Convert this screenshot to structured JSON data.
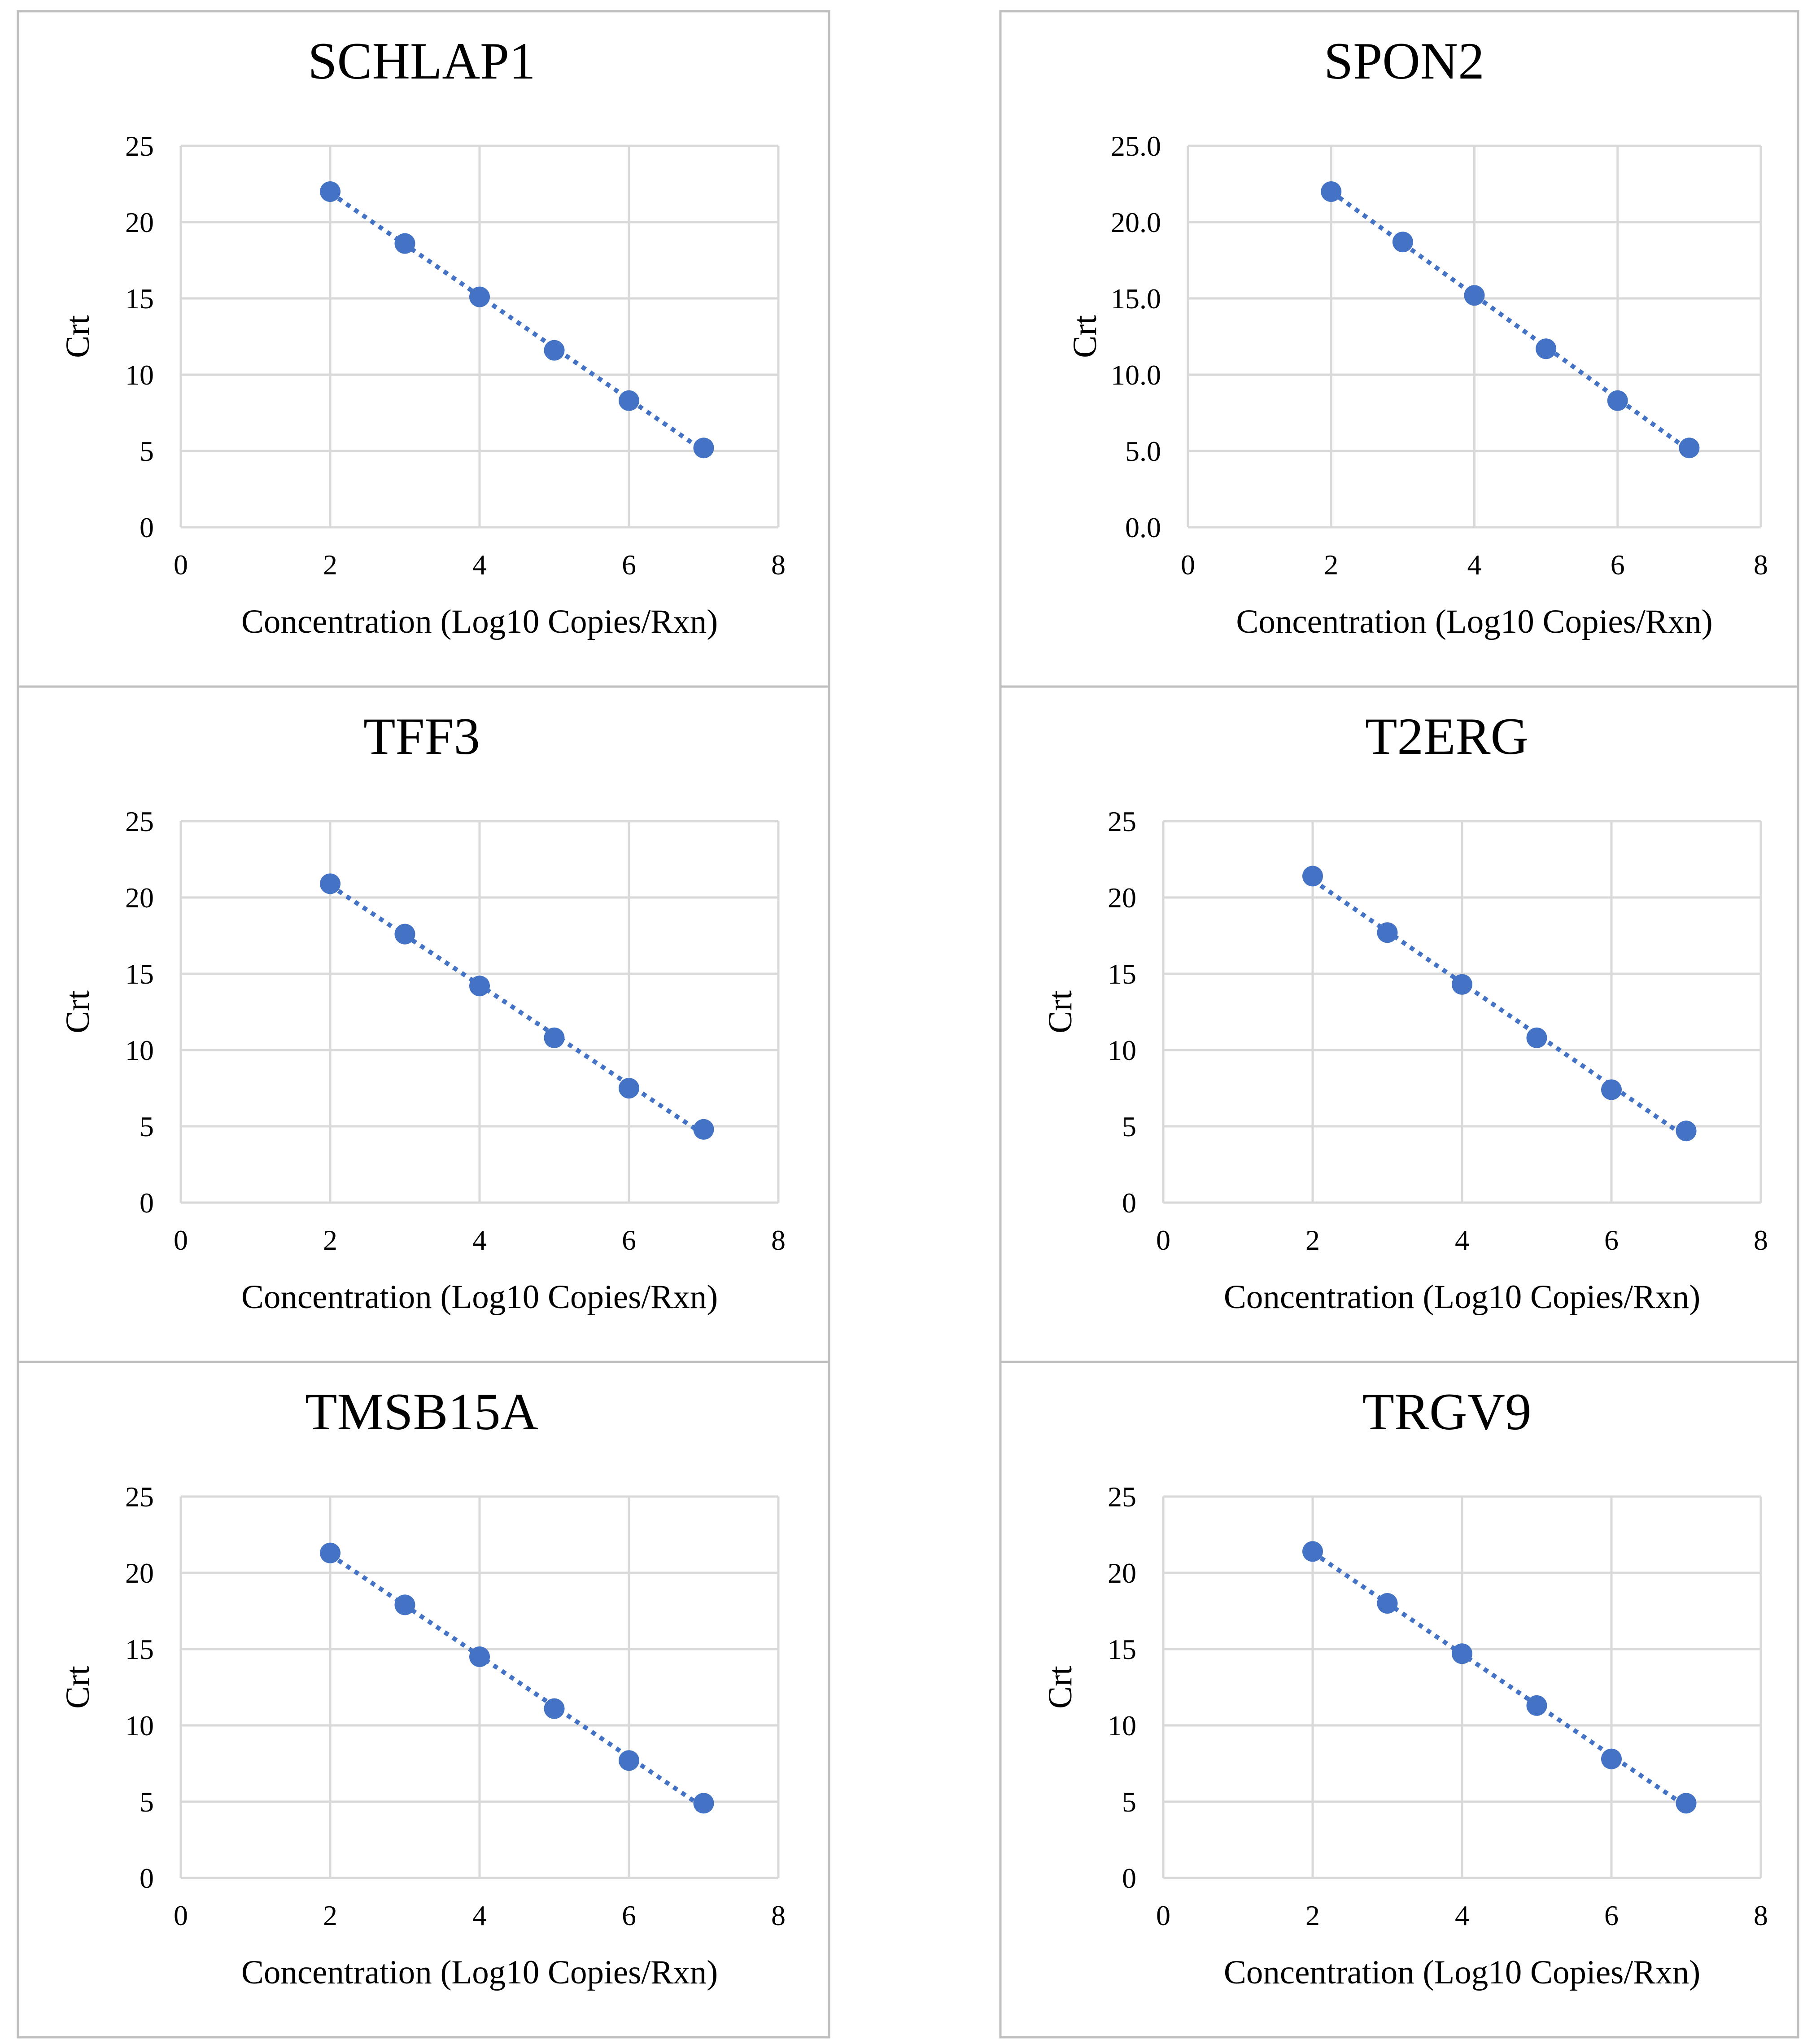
{
  "figure": {
    "colors": {
      "marker": "#4472C4",
      "trendline": "#4472C4",
      "gridline": "#D9D9D9",
      "panel_border": "#BFBFBF",
      "text": "#000000"
    }
  },
  "chart_data": [
    {
      "type": "scatter",
      "title": "SCHLAP1",
      "xlabel": "Concentration (Log10 Copies/Rxn)",
      "ylabel": "Crt",
      "xlim": [
        0,
        8
      ],
      "ylim": [
        0,
        25
      ],
      "x_ticks": [
        "0",
        "2",
        "4",
        "6",
        "8"
      ],
      "y_ticks": [
        "0",
        "5",
        "10",
        "15",
        "20",
        "25"
      ],
      "grid": true,
      "trendline": "linear, dotted",
      "series": [
        {
          "name": "SCHLAP1",
          "x": [
            2,
            3,
            4,
            5,
            6,
            7
          ],
          "y": [
            22.0,
            18.6,
            15.1,
            11.6,
            8.3,
            5.2
          ]
        }
      ]
    },
    {
      "type": "scatter",
      "title": "SPON2",
      "xlabel": "Concentration (Log10 Copies/Rxn)",
      "ylabel": "Crt",
      "xlim": [
        0,
        8
      ],
      "ylim": [
        0,
        25
      ],
      "x_ticks": [
        "0",
        "2",
        "4",
        "6",
        "8"
      ],
      "y_ticks": [
        "0.0",
        "5.0",
        "10.0",
        "15.0",
        "20.0",
        "25.0"
      ],
      "grid": true,
      "trendline": "linear, dotted",
      "series": [
        {
          "name": "SPON2",
          "x": [
            2,
            3,
            4,
            5,
            6,
            7
          ],
          "y": [
            22.0,
            18.7,
            15.2,
            11.7,
            8.3,
            5.2
          ]
        }
      ]
    },
    {
      "type": "scatter",
      "title": "TFF3",
      "xlabel": "Concentration (Log10 Copies/Rxn)",
      "ylabel": "Crt",
      "xlim": [
        0,
        8
      ],
      "ylim": [
        0,
        25
      ],
      "x_ticks": [
        "0",
        "2",
        "4",
        "6",
        "8"
      ],
      "y_ticks": [
        "0",
        "5",
        "10",
        "15",
        "20",
        "25"
      ],
      "grid": true,
      "trendline": "linear, dotted",
      "series": [
        {
          "name": "TFF3",
          "x": [
            2,
            3,
            4,
            5,
            6,
            7
          ],
          "y": [
            20.9,
            17.6,
            14.2,
            10.8,
            7.5,
            4.8
          ]
        }
      ]
    },
    {
      "type": "scatter",
      "title": "T2ERG",
      "xlabel": "Concentration (Log10 Copies/Rxn)",
      "ylabel": "Crt",
      "xlim": [
        0,
        8
      ],
      "ylim": [
        0,
        25
      ],
      "x_ticks": [
        "0",
        "2",
        "4",
        "6",
        "8"
      ],
      "y_ticks": [
        "0",
        "5",
        "10",
        "15",
        "20",
        "25"
      ],
      "grid": true,
      "trendline": "linear, dotted",
      "series": [
        {
          "name": "T2ERG",
          "x": [
            2,
            3,
            4,
            5,
            6,
            7
          ],
          "y": [
            21.4,
            17.7,
            14.3,
            10.8,
            7.4,
            4.7
          ]
        }
      ]
    },
    {
      "type": "scatter",
      "title": "TMSB15A",
      "xlabel": "Concentration (Log10 Copies/Rxn)",
      "ylabel": "Crt",
      "xlim": [
        0,
        8
      ],
      "ylim": [
        0,
        25
      ],
      "x_ticks": [
        "0",
        "2",
        "4",
        "6",
        "8"
      ],
      "y_ticks": [
        "0",
        "5",
        "10",
        "15",
        "20",
        "25"
      ],
      "grid": true,
      "trendline": "linear, dotted",
      "series": [
        {
          "name": "TMSB15A",
          "x": [
            2,
            3,
            4,
            5,
            6,
            7
          ],
          "y": [
            21.3,
            17.9,
            14.5,
            11.1,
            7.7,
            4.9
          ]
        }
      ]
    },
    {
      "type": "scatter",
      "title": "TRGV9",
      "xlabel": "Concentration (Log10 Copies/Rxn)",
      "ylabel": "Crt",
      "xlim": [
        0,
        8
      ],
      "ylim": [
        0,
        25
      ],
      "x_ticks": [
        "0",
        "2",
        "4",
        "6",
        "8"
      ],
      "y_ticks": [
        "0",
        "5",
        "10",
        "15",
        "20",
        "25"
      ],
      "grid": true,
      "trendline": "linear, dotted",
      "series": [
        {
          "name": "TRGV9",
          "x": [
            2,
            3,
            4,
            5,
            6,
            7
          ],
          "y": [
            21.4,
            18.0,
            14.7,
            11.3,
            7.8,
            4.9
          ]
        }
      ]
    }
  ]
}
